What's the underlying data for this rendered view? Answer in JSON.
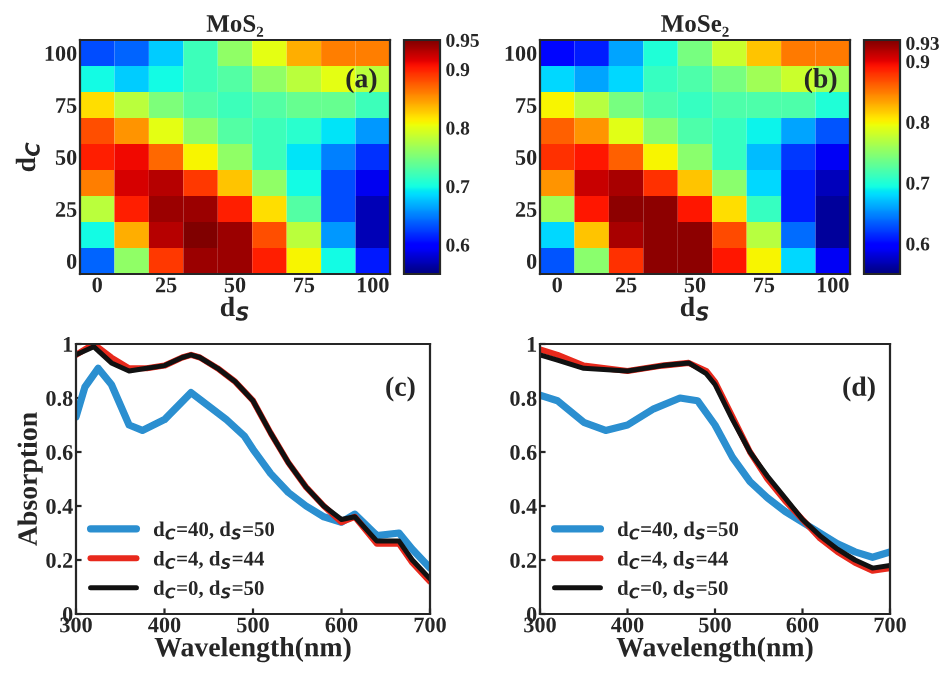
{
  "chart_data": [
    {
      "type": "heatmap",
      "title": "MoS₂",
      "xlabel": "d$_{S}$",
      "ylabel": "d$_{C}$",
      "annotations": [
        "(a)"
      ],
      "categories": [
        "0",
        null,
        "25",
        null,
        "50",
        null,
        "75",
        null,
        "100"
      ],
      "y_categories": [
        "100",
        null,
        "75",
        null,
        "50",
        null,
        "25",
        null,
        "0"
      ],
      "clim": [
        0.55,
        0.95
      ],
      "cticks": [
        0.6,
        0.7,
        0.8,
        0.9,
        0.95
      ],
      "cells": [
        [
          0.63,
          0.64,
          0.68,
          0.72,
          0.76,
          0.8,
          0.84,
          0.86,
          0.86
        ],
        [
          0.7,
          0.68,
          0.7,
          0.72,
          0.73,
          0.76,
          0.78,
          0.8,
          0.78
        ],
        [
          0.82,
          0.78,
          0.75,
          0.73,
          0.72,
          0.73,
          0.74,
          0.74,
          0.72
        ],
        [
          0.88,
          0.85,
          0.8,
          0.76,
          0.73,
          0.72,
          0.71,
          0.69,
          0.66
        ],
        [
          0.9,
          0.91,
          0.87,
          0.81,
          0.76,
          0.72,
          0.69,
          0.65,
          0.62
        ],
        [
          0.86,
          0.92,
          0.93,
          0.89,
          0.83,
          0.76,
          0.7,
          0.63,
          0.59
        ],
        [
          0.78,
          0.9,
          0.94,
          0.94,
          0.9,
          0.82,
          0.73,
          0.63,
          0.57
        ],
        [
          0.7,
          0.84,
          0.93,
          0.95,
          0.94,
          0.88,
          0.78,
          0.66,
          0.57
        ],
        [
          0.64,
          0.76,
          0.89,
          0.94,
          0.94,
          0.9,
          0.81,
          0.7,
          0.61
        ]
      ]
    },
    {
      "type": "heatmap",
      "title": "MoSe₂",
      "xlabel": "d$_{S}$",
      "annotations": [
        "(b)"
      ],
      "categories": [
        "0",
        null,
        "25",
        null,
        "50",
        null,
        "75",
        null,
        "100"
      ],
      "y_categories": [
        "100",
        null,
        "75",
        null,
        "50",
        null,
        "25",
        null,
        "0"
      ],
      "clim": [
        0.55,
        0.935
      ],
      "cticks": [
        0.6,
        0.7,
        0.8,
        0.9,
        0.93
      ],
      "cells": [
        [
          0.6,
          0.61,
          0.66,
          0.7,
          0.74,
          0.78,
          0.82,
          0.85,
          0.85
        ],
        [
          0.68,
          0.66,
          0.68,
          0.71,
          0.72,
          0.74,
          0.76,
          0.78,
          0.76
        ],
        [
          0.8,
          0.77,
          0.74,
          0.72,
          0.71,
          0.72,
          0.72,
          0.72,
          0.7
        ],
        [
          0.86,
          0.84,
          0.79,
          0.75,
          0.72,
          0.71,
          0.69,
          0.66,
          0.63
        ],
        [
          0.88,
          0.89,
          0.86,
          0.8,
          0.75,
          0.71,
          0.67,
          0.62,
          0.59
        ],
        [
          0.84,
          0.91,
          0.92,
          0.88,
          0.82,
          0.75,
          0.68,
          0.61,
          0.57
        ],
        [
          0.76,
          0.89,
          0.93,
          0.93,
          0.89,
          0.81,
          0.71,
          0.61,
          0.56
        ],
        [
          0.68,
          0.82,
          0.92,
          0.93,
          0.93,
          0.87,
          0.77,
          0.64,
          0.56
        ],
        [
          0.63,
          0.75,
          0.88,
          0.93,
          0.93,
          0.89,
          0.8,
          0.68,
          0.59
        ]
      ]
    },
    {
      "type": "line",
      "xlabel": "Wavelength(nm)",
      "ylabel": "Absorption",
      "annotations": [
        "(c)"
      ],
      "xlim": [
        300,
        700
      ],
      "xticks": [
        300,
        400,
        500,
        600,
        700
      ],
      "ylim": [
        0,
        1
      ],
      "yticks": [
        0,
        0.2,
        0.4,
        0.6,
        0.8,
        1
      ],
      "legend": "bottom left",
      "grid": false,
      "series": [
        {
          "name": "d$_{C}$=40, d$_{S}$=50",
          "color": "#2b8fd0",
          "x": [
            300,
            310,
            325,
            340,
            360,
            375,
            400,
            430,
            450,
            470,
            490,
            500,
            520,
            540,
            560,
            580,
            600,
            615,
            640,
            665,
            680,
            700
          ],
          "values": [
            0.73,
            0.84,
            0.91,
            0.85,
            0.7,
            0.68,
            0.72,
            0.82,
            0.77,
            0.72,
            0.66,
            0.61,
            0.52,
            0.45,
            0.4,
            0.36,
            0.34,
            0.37,
            0.29,
            0.3,
            0.24,
            0.17
          ]
        },
        {
          "name": "d$_{C}$=4, d$_{S}$=44",
          "color": "#e8291c",
          "x": [
            300,
            320,
            340,
            360,
            380,
            400,
            420,
            430,
            440,
            460,
            480,
            500,
            520,
            540,
            560,
            580,
            600,
            615,
            640,
            665,
            680,
            700
          ],
          "values": [
            0.96,
            1.0,
            0.95,
            0.91,
            0.91,
            0.92,
            0.95,
            0.96,
            0.95,
            0.91,
            0.86,
            0.79,
            0.67,
            0.56,
            0.47,
            0.4,
            0.34,
            0.36,
            0.26,
            0.26,
            0.19,
            0.12
          ]
        },
        {
          "name": "d$_{C}$=0, d$_{S}$=50",
          "color": "#111111",
          "x": [
            300,
            320,
            340,
            360,
            380,
            400,
            420,
            430,
            440,
            460,
            480,
            500,
            520,
            540,
            560,
            580,
            600,
            615,
            640,
            665,
            680,
            700
          ],
          "values": [
            0.96,
            0.99,
            0.93,
            0.9,
            0.91,
            0.92,
            0.95,
            0.96,
            0.95,
            0.91,
            0.86,
            0.79,
            0.67,
            0.56,
            0.47,
            0.4,
            0.35,
            0.36,
            0.27,
            0.27,
            0.2,
            0.13
          ]
        }
      ]
    },
    {
      "type": "line",
      "xlabel": "Wavelength(nm)",
      "annotations": [
        "(d)"
      ],
      "xlim": [
        300,
        700
      ],
      "xticks": [
        300,
        400,
        500,
        600,
        700
      ],
      "ylim": [
        0,
        1
      ],
      "yticks": [
        0,
        0.2,
        0.4,
        0.6,
        0.8,
        1
      ],
      "legend": "bottom left",
      "grid": false,
      "series": [
        {
          "name": "d$_{C}$=40, d$_{S}$=50",
          "color": "#2b8fd0",
          "x": [
            300,
            320,
            350,
            375,
            400,
            430,
            460,
            480,
            500,
            520,
            540,
            560,
            580,
            600,
            620,
            640,
            660,
            680,
            700
          ],
          "values": [
            0.81,
            0.79,
            0.71,
            0.68,
            0.7,
            0.76,
            0.8,
            0.79,
            0.7,
            0.58,
            0.49,
            0.43,
            0.38,
            0.34,
            0.3,
            0.26,
            0.23,
            0.21,
            0.23
          ]
        },
        {
          "name": "d$_{C}$=4, d$_{S}$=44",
          "color": "#e8291c",
          "x": [
            300,
            320,
            350,
            400,
            440,
            470,
            490,
            500,
            520,
            540,
            560,
            580,
            600,
            620,
            640,
            660,
            680,
            700
          ],
          "values": [
            0.98,
            0.96,
            0.92,
            0.9,
            0.92,
            0.93,
            0.9,
            0.86,
            0.73,
            0.6,
            0.5,
            0.42,
            0.35,
            0.28,
            0.23,
            0.19,
            0.16,
            0.17
          ]
        },
        {
          "name": "d$_{C}$=0, d$_{S}$=50",
          "color": "#111111",
          "x": [
            300,
            320,
            350,
            400,
            440,
            470,
            490,
            500,
            520,
            540,
            560,
            580,
            600,
            620,
            640,
            660,
            680,
            700
          ],
          "values": [
            0.96,
            0.94,
            0.91,
            0.9,
            0.92,
            0.93,
            0.89,
            0.85,
            0.72,
            0.6,
            0.51,
            0.43,
            0.35,
            0.29,
            0.24,
            0.2,
            0.17,
            0.18
          ]
        }
      ]
    }
  ]
}
